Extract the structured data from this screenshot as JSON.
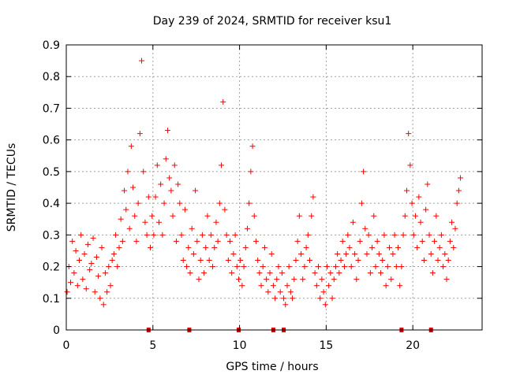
{
  "chart_data": {
    "type": "scatter",
    "title": "Day 239 of 2024, SRMTID for receiver ksu1",
    "xlabel": "GPS time / hours",
    "ylabel": "SRMTID / TECUs",
    "xlim": [
      0,
      24
    ],
    "ylim": [
      0,
      0.9
    ],
    "grid": true,
    "marker": "+",
    "xticks": [
      0,
      5,
      10,
      15,
      20
    ],
    "xtick_labels": [
      "0",
      "5",
      "10",
      "15",
      "20"
    ],
    "yticks": [
      0,
      0.1,
      0.2,
      0.3,
      0.4,
      0.5,
      0.6,
      0.7,
      0.8,
      0.9
    ],
    "ytick_labels": [
      "0",
      "0.1",
      "0.2",
      "0.3",
      "0.4",
      "0.5",
      "0.6",
      "0.7",
      "0.8",
      "0.9"
    ],
    "colors": {
      "points": "#ff0000",
      "zero_markers": "#dd0000",
      "grid": "#a0a0a0",
      "axes": "#000000"
    },
    "series": [
      {
        "name": "SRMTID",
        "x": [
          0.05,
          0.15,
          0.25,
          0.35,
          0.45,
          0.55,
          0.65,
          0.75,
          0.85,
          0.95,
          1.05,
          1.15,
          1.25,
          1.35,
          1.45,
          1.55,
          1.65,
          1.75,
          1.85,
          1.95,
          2.05,
          2.15,
          2.25,
          2.35,
          2.45,
          2.55,
          2.65,
          2.75,
          2.85,
          2.95,
          3.05,
          3.15,
          3.25,
          3.35,
          3.45,
          3.55,
          3.65,
          3.75,
          3.85,
          3.95,
          4.05,
          4.15,
          4.25,
          4.35,
          4.45,
          4.55,
          4.65,
          4.75,
          4.85,
          4.95,
          5.05,
          5.15,
          5.25,
          5.35,
          5.45,
          5.55,
          5.65,
          5.75,
          5.85,
          5.95,
          6.05,
          6.15,
          6.25,
          6.35,
          6.45,
          6.55,
          6.65,
          6.75,
          6.85,
          6.95,
          7.05,
          7.15,
          7.25,
          7.35,
          7.45,
          7.55,
          7.65,
          7.75,
          7.85,
          7.95,
          8.05,
          8.15,
          8.25,
          8.35,
          8.45,
          8.55,
          8.65,
          8.75,
          8.85,
          8.95,
          9.05,
          9.15,
          9.25,
          9.35,
          9.45,
          9.55,
          9.65,
          9.75,
          9.85,
          9.95,
          10.05,
          10.15,
          10.25,
          10.35,
          10.45,
          10.55,
          10.65,
          10.75,
          10.85,
          10.95,
          11.05,
          11.15,
          11.25,
          11.35,
          11.45,
          11.55,
          11.65,
          11.75,
          11.85,
          11.95,
          12.05,
          12.15,
          12.25,
          12.35,
          12.45,
          12.55,
          12.65,
          12.75,
          12.85,
          12.95,
          13.05,
          13.15,
          13.25,
          13.35,
          13.45,
          13.55,
          13.65,
          13.75,
          13.85,
          13.95,
          14.05,
          14.15,
          14.25,
          14.35,
          14.45,
          14.55,
          14.65,
          14.75,
          14.85,
          14.95,
          15.05,
          15.15,
          15.25,
          15.35,
          15.45,
          15.55,
          15.65,
          15.75,
          15.85,
          15.95,
          16.05,
          16.15,
          16.25,
          16.35,
          16.45,
          16.55,
          16.65,
          16.75,
          16.85,
          16.95,
          17.05,
          17.15,
          17.25,
          17.35,
          17.45,
          17.55,
          17.65,
          17.75,
          17.85,
          17.95,
          18.05,
          18.15,
          18.25,
          18.35,
          18.45,
          18.55,
          18.65,
          18.75,
          18.85,
          18.95,
          19.05,
          19.15,
          19.25,
          19.35,
          19.45,
          19.55,
          19.65,
          19.75,
          19.85,
          19.95,
          20.05,
          20.15,
          20.25,
          20.35,
          20.45,
          20.55,
          20.65,
          20.75,
          20.85,
          20.95,
          21.05,
          21.15,
          21.25,
          21.35,
          21.45,
          21.55,
          21.65,
          21.75,
          21.85,
          21.95,
          22.05,
          22.15,
          22.25,
          22.35,
          22.45,
          22.55,
          22.65,
          22.75
        ],
        "y": [
          0.12,
          0.2,
          0.15,
          0.28,
          0.18,
          0.25,
          0.14,
          0.22,
          0.3,
          0.16,
          0.24,
          0.13,
          0.27,
          0.19,
          0.21,
          0.29,
          0.12,
          0.23,
          0.17,
          0.1,
          0.26,
          0.08,
          0.18,
          0.12,
          0.2,
          0.14,
          0.22,
          0.24,
          0.3,
          0.2,
          0.26,
          0.35,
          0.28,
          0.44,
          0.38,
          0.5,
          0.32,
          0.58,
          0.45,
          0.36,
          0.28,
          0.4,
          0.62,
          0.85,
          0.5,
          0.34,
          0.3,
          0.42,
          0.26,
          0.36,
          0.3,
          0.42,
          0.52,
          0.34,
          0.46,
          0.3,
          0.4,
          0.54,
          0.63,
          0.48,
          0.44,
          0.36,
          0.52,
          0.28,
          0.46,
          0.4,
          0.3,
          0.22,
          0.38,
          0.2,
          0.26,
          0.18,
          0.32,
          0.24,
          0.44,
          0.28,
          0.16,
          0.22,
          0.3,
          0.18,
          0.26,
          0.36,
          0.22,
          0.3,
          0.2,
          0.26,
          0.34,
          0.28,
          0.4,
          0.52,
          0.72,
          0.38,
          0.3,
          0.22,
          0.28,
          0.18,
          0.24,
          0.3,
          0.2,
          0.16,
          0.22,
          0.14,
          0.2,
          0.26,
          0.32,
          0.4,
          0.5,
          0.58,
          0.36,
          0.28,
          0.22,
          0.18,
          0.14,
          0.2,
          0.26,
          0.16,
          0.12,
          0.18,
          0.24,
          0.14,
          0.1,
          0.16,
          0.2,
          0.12,
          0.18,
          0.1,
          0.08,
          0.14,
          0.2,
          0.12,
          0.1,
          0.16,
          0.22,
          0.28,
          0.36,
          0.24,
          0.16,
          0.2,
          0.26,
          0.3,
          0.22,
          0.36,
          0.42,
          0.18,
          0.14,
          0.2,
          0.1,
          0.16,
          0.12,
          0.08,
          0.2,
          0.14,
          0.18,
          0.1,
          0.16,
          0.2,
          0.24,
          0.18,
          0.22,
          0.28,
          0.2,
          0.24,
          0.3,
          0.26,
          0.2,
          0.34,
          0.24,
          0.16,
          0.22,
          0.28,
          0.4,
          0.5,
          0.32,
          0.24,
          0.3,
          0.18,
          0.26,
          0.36,
          0.2,
          0.28,
          0.24,
          0.18,
          0.22,
          0.3,
          0.14,
          0.2,
          0.26,
          0.16,
          0.24,
          0.3,
          0.2,
          0.26,
          0.14,
          0.2,
          0.3,
          0.36,
          0.44,
          0.62,
          0.52,
          0.4,
          0.3,
          0.36,
          0.26,
          0.42,
          0.34,
          0.28,
          0.22,
          0.38,
          0.46,
          0.3,
          0.24,
          0.18,
          0.28,
          0.36,
          0.22,
          0.26,
          0.3,
          0.2,
          0.24,
          0.16,
          0.22,
          0.28,
          0.34,
          0.26,
          0.32,
          0.4,
          0.44,
          0.48
        ]
      }
    ],
    "zero_markers_x": [
      4.75,
      7.1,
      9.95,
      11.95,
      12.55,
      19.35,
      21.05
    ]
  }
}
